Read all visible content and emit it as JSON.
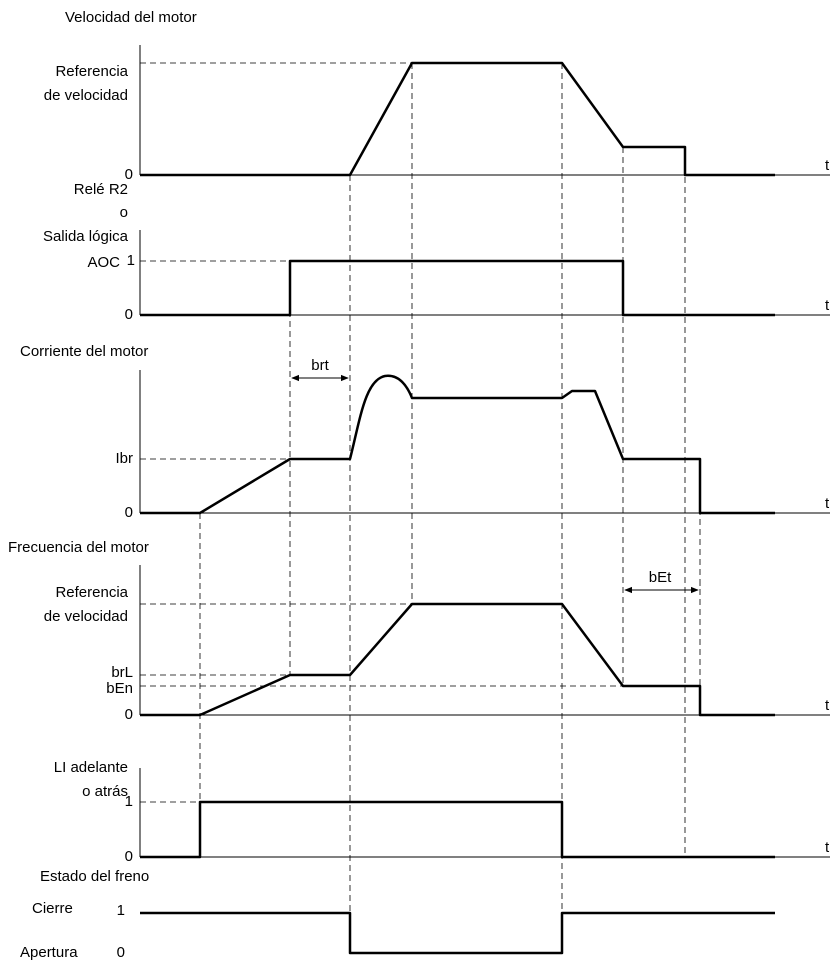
{
  "panels": [
    {
      "title": "Velocidad del motor",
      "labels": [
        "Referencia",
        "de velocidad",
        "0",
        "t"
      ]
    },
    {
      "title_lines": [
        "Relé R2",
        "o",
        "Salida lógica",
        "AOC"
      ],
      "labels": [
        "1",
        "0",
        "t"
      ]
    },
    {
      "title": "Corriente del motor",
      "labels": [
        "Ibr",
        "0",
        "t"
      ],
      "annotation": "brt"
    },
    {
      "title": "Frecuencia del motor",
      "labels": [
        "Referencia",
        "de velocidad",
        "brL",
        "bEn",
        "0",
        "t"
      ],
      "annotation": "bEt"
    },
    {
      "title_lines": [
        "LI adelante",
        "o atrás"
      ],
      "labels": [
        "1",
        "0",
        "t"
      ]
    },
    {
      "title": "Estado del freno",
      "labels": [
        "Cierre",
        "1",
        "Apertura",
        "0"
      ]
    }
  ]
}
